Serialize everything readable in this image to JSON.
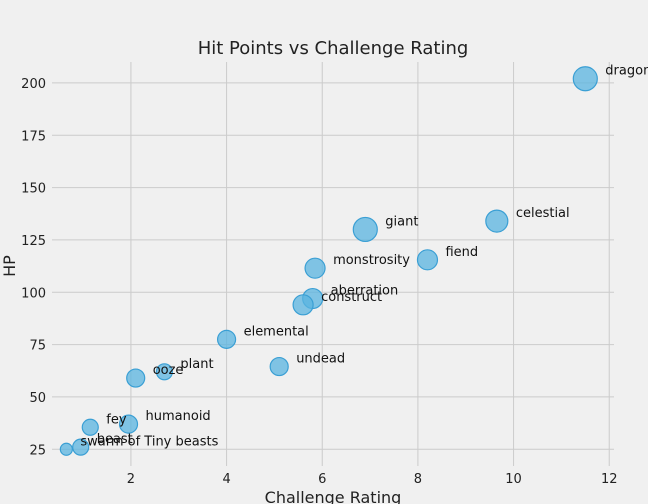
{
  "chart_data": {
    "type": "scatter",
    "title": "Hit Points vs Challenge Rating",
    "xlabel": "Challenge Rating",
    "ylabel": "HP",
    "xlim": [
      0.35,
      12.1
    ],
    "ylim": [
      17,
      210
    ],
    "xticks": [
      2,
      4,
      6,
      8,
      10,
      12
    ],
    "yticks": [
      25,
      50,
      75,
      100,
      125,
      150,
      175,
      200
    ],
    "grid": true,
    "colors": {
      "fill": "#5ab4e0",
      "stroke": "#3a9fd4"
    },
    "points": [
      {
        "label": "dragon",
        "x": 11.5,
        "y": 202,
        "r": 12
      },
      {
        "label": "celestial",
        "x": 9.65,
        "y": 134,
        "r": 11
      },
      {
        "label": "giant",
        "x": 6.9,
        "y": 130,
        "r": 12
      },
      {
        "label": "fiend",
        "x": 8.2,
        "y": 115.5,
        "r": 10
      },
      {
        "label": "monstrosity",
        "x": 5.85,
        "y": 111.5,
        "r": 10
      },
      {
        "label": "aberration",
        "x": 5.8,
        "y": 97,
        "r": 10
      },
      {
        "label": "construct",
        "x": 5.6,
        "y": 94,
        "r": 10
      },
      {
        "label": "elemental",
        "x": 4.0,
        "y": 77.5,
        "r": 9
      },
      {
        "label": "undead",
        "x": 5.1,
        "y": 64.5,
        "r": 9
      },
      {
        "label": "plant",
        "x": 2.7,
        "y": 62,
        "r": 8
      },
      {
        "label": "ooze",
        "x": 2.1,
        "y": 59,
        "r": 9
      },
      {
        "label": "humanoid",
        "x": 1.95,
        "y": 37,
        "r": 9
      },
      {
        "label": "fey",
        "x": 1.15,
        "y": 35.5,
        "r": 8
      },
      {
        "label": "beast",
        "x": 0.95,
        "y": 26,
        "r": 8
      },
      {
        "label": "swarm of Tiny beasts",
        "x": 0.65,
        "y": 25,
        "r": 6
      }
    ]
  }
}
